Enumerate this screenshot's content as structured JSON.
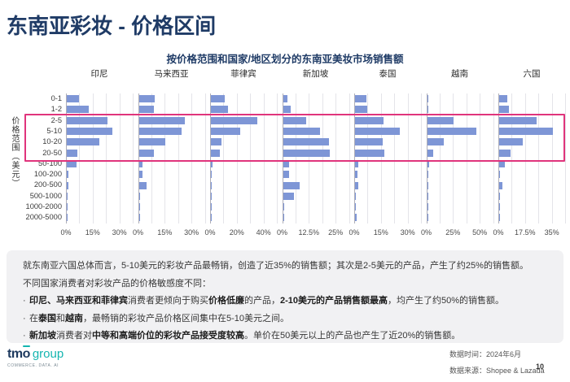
{
  "page": {
    "title": "东南亚彩妆 - 价格区间",
    "page_number": "10"
  },
  "chart_data": {
    "type": "bar",
    "orientation": "horizontal",
    "title": "按价格范围和国家/地区划分的东南亚美妆市场销售额",
    "ylabel": "价格范围（美元）",
    "value_unit": "%",
    "grid": true,
    "categories": [
      "0-1",
      "1-2",
      "2-5",
      "5-10",
      "10-20",
      "20-50",
      "50-100",
      "100-200",
      "200-500",
      "500-1000",
      "1000-2000",
      "2000-5000"
    ],
    "highlighted_rows": [
      "2-5",
      "5-10",
      "10-20",
      "20-50"
    ],
    "colors": {
      "bar": "#7E96D6",
      "highlight_border": "#E0347C"
    },
    "panels": [
      {
        "country": "印尼",
        "xmax": 37.5,
        "tick_labels": [
          "0%",
          "15%",
          "30%"
        ],
        "tick_values": [
          0,
          15,
          30
        ],
        "values": [
          7,
          12.5,
          23,
          25.5,
          18.5,
          6,
          5.5,
          1,
          1,
          0.5,
          0.2,
          0.3
        ]
      },
      {
        "country": "马来西亚",
        "xmax": 37.5,
        "tick_labels": [
          "0%",
          "15%",
          "30%"
        ],
        "tick_values": [
          0,
          15,
          30
        ],
        "values": [
          9,
          8.5,
          26,
          24,
          15,
          8.5,
          2,
          2,
          4.5,
          0.5,
          0.2,
          0.5
        ]
      },
      {
        "country": "菲律宾",
        "xmax": 50,
        "tick_labels": [
          "0%",
          "20%",
          "40%"
        ],
        "tick_values": [
          0,
          20,
          40
        ],
        "values": [
          10.5,
          12.5,
          35,
          22,
          8,
          7,
          1,
          0.4,
          0.6,
          0.2,
          0.1,
          0.2
        ]
      },
      {
        "country": "新加坡",
        "xmax": 31.25,
        "tick_labels": [
          "0%",
          "12.5%",
          "25%"
        ],
        "tick_values": [
          0,
          12.5,
          25
        ],
        "values": [
          2,
          3.5,
          11,
          17.5,
          21.5,
          22,
          3,
          3,
          8,
          5,
          0.7,
          0.3
        ]
      },
      {
        "country": "泰国",
        "xmax": 37.5,
        "tick_labels": [
          "0%",
          "15%",
          "30%"
        ],
        "tick_values": [
          0,
          15,
          30
        ],
        "values": [
          6.5,
          7,
          16,
          25,
          15.5,
          16.5,
          2,
          1.5,
          2,
          0.3,
          0.3,
          1
        ]
      },
      {
        "country": "越南",
        "xmax": 62.5,
        "tick_labels": [
          "0%",
          "25%",
          "50%"
        ],
        "tick_values": [
          0,
          25,
          50
        ],
        "values": [
          1.5,
          1,
          25,
          46,
          15.5,
          5.5,
          2,
          0.5,
          1,
          0.2,
          0.1,
          0.2
        ]
      },
      {
        "country": "六国",
        "xmax": 43.75,
        "tick_labels": [
          "0%",
          "17.5%",
          "35%"
        ],
        "tick_values": [
          0,
          17.5,
          35
        ],
        "values": [
          5.5,
          6.5,
          24.5,
          35,
          15.5,
          7.5,
          3.5,
          0.5,
          2,
          0.3,
          0.2,
          0.5
        ]
      }
    ]
  },
  "analysis": {
    "para1": "就东南亚六国总体而言，5-10美元的彩妆产品最畅销，创造了近35%的销售额；其次是2-5美元的产品，产生了约25%的销售额。",
    "para2": "不同国家消费者对彩妆产品的价格敏感度不同：",
    "bullet_char": "·",
    "bullets": [
      {
        "runs": [
          {
            "t": "印尼、马来西亚和菲律宾",
            "b": 1
          },
          {
            "t": "消费者更倾向于购买",
            "b": 0
          },
          {
            "t": "价格低廉",
            "b": 1
          },
          {
            "t": "的产品，",
            "b": 0
          },
          {
            "t": "2-10美元的产品销售额最高",
            "b": 1
          },
          {
            "t": "，均产生了约50%的销售额。",
            "b": 0
          }
        ]
      },
      {
        "runs": [
          {
            "t": "在",
            "b": 0
          },
          {
            "t": "泰国",
            "b": 1
          },
          {
            "t": "和",
            "b": 0
          },
          {
            "t": "越南",
            "b": 1
          },
          {
            "t": "，最畅销的彩妆产品价格区间集中在5-10美元之间。",
            "b": 0
          }
        ]
      },
      {
        "runs": [
          {
            "t": "新加坡",
            "b": 1
          },
          {
            "t": "消费者对",
            "b": 0
          },
          {
            "t": "中等和高端价位的彩妆产品接受度较高",
            "b": 1
          },
          {
            "t": "。单价在50美元以上的产品也产生了近20%的销售额。",
            "b": 0
          }
        ]
      }
    ]
  },
  "footer": {
    "logo_text_tm": "tm",
    "logo_text_o": "o",
    "logo_suffix": "group",
    "logo_tagline": "COMMERCE. DATA. AI",
    "data_time_label": "数据时间：",
    "data_time_value": "2024年6月",
    "data_source_label": "数据来源：",
    "data_source_value": "Shopee & Lazada"
  }
}
